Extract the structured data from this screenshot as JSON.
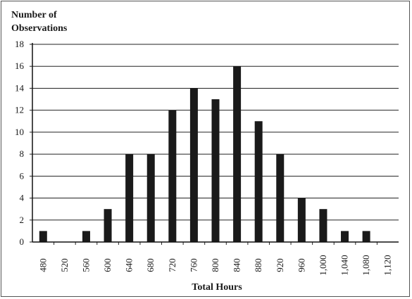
{
  "chart_data": {
    "type": "bar",
    "ylabel_lines": [
      "Number of",
      "Observations"
    ],
    "xlabel": "Total Hours",
    "categories": [
      "480",
      "520",
      "560",
      "600",
      "640",
      "680",
      "720",
      "760",
      "800",
      "840",
      "880",
      "920",
      "960",
      "1,000",
      "1,040",
      "1,080",
      "1,120"
    ],
    "values": [
      1,
      0,
      1,
      3,
      8,
      8,
      12,
      14,
      13,
      16,
      11,
      8,
      4,
      3,
      1,
      1,
      0
    ],
    "yticks": [
      0,
      2,
      4,
      6,
      8,
      10,
      12,
      14,
      16,
      18
    ],
    "ylim": [
      0,
      18
    ],
    "grid": true,
    "bar_color": "#1a1a1a",
    "grid_color": "#222222"
  }
}
